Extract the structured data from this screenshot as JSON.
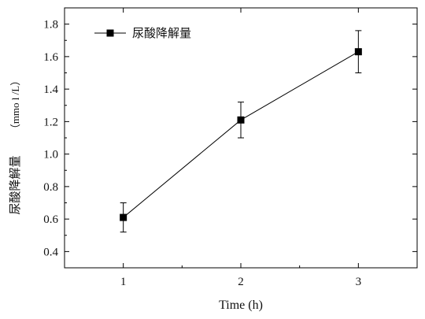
{
  "chart_data": {
    "type": "line",
    "title": "",
    "xlabel": "Time (h)",
    "ylabel": "尿酸降解量（mmol/L）",
    "ylabel_cjk": "尿酸降解量",
    "ylabel_unit": "（mmo l /L）",
    "x": [
      1,
      2,
      3
    ],
    "xlim": [
      0.5,
      3.5
    ],
    "ylim": [
      0.3,
      1.9
    ],
    "xticks": [
      1,
      2,
      3
    ],
    "yticks": [
      0.4,
      0.6,
      0.8,
      1.0,
      1.2,
      1.4,
      1.6,
      1.8
    ],
    "ytick_labels": [
      "0.4",
      "0.6",
      "0.8",
      "1.0",
      "1.2",
      "1.4",
      "1.6",
      "1.8"
    ],
    "xtick_labels": [
      "1",
      "2",
      "3"
    ],
    "series": [
      {
        "name": "尿酸降解量",
        "values": [
          0.61,
          1.21,
          1.63
        ],
        "errors": [
          0.09,
          0.11,
          0.13
        ],
        "marker": "square",
        "color": "#000000"
      }
    ],
    "legend": {
      "position": "top-left",
      "entries": [
        "尿酸降解量"
      ]
    },
    "grid": false
  }
}
